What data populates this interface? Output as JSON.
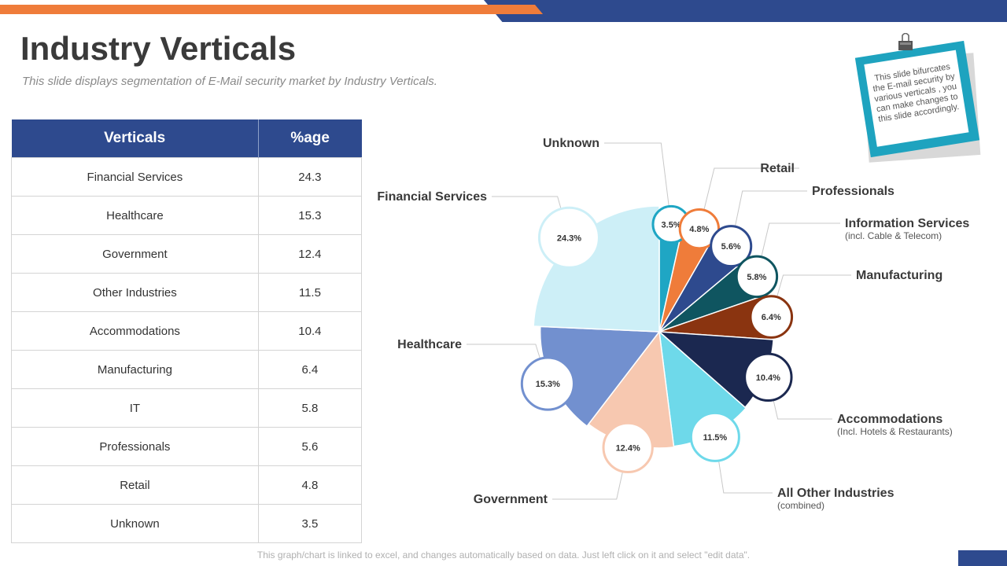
{
  "header": {
    "title": "Industry Verticals",
    "subtitle": "This slide displays segmentation of E-Mail security market by Industry Verticals."
  },
  "table": {
    "columns": [
      "Verticals",
      "%age"
    ],
    "rows": [
      [
        "Financial Services",
        "24.3"
      ],
      [
        "Healthcare",
        "15.3"
      ],
      [
        "Government",
        "12.4"
      ],
      [
        "Other Industries",
        "11.5"
      ],
      [
        "Accommodations",
        "10.4"
      ],
      [
        "Manufacturing",
        "6.4"
      ],
      [
        "IT",
        "5.8"
      ],
      [
        "Professionals",
        "5.6"
      ],
      [
        "Retail",
        "4.8"
      ],
      [
        "Unknown",
        "3.5"
      ]
    ]
  },
  "note": {
    "text": "This slide bifurcates the E-mail security by various verticals , you can make changes to this slide accordingly."
  },
  "footer": {
    "text": "This graph/chart is linked to excel, and changes automatically based on data. Just left click on it and select \"edit data\"."
  },
  "chart_data": {
    "type": "pie",
    "value_suffix": "%",
    "slices": [
      {
        "label": "Unknown",
        "sublabel": "",
        "value": 3.5,
        "color": "#1fa6c4"
      },
      {
        "label": "Retail",
        "sublabel": "",
        "value": 4.8,
        "color": "#ef7c3a"
      },
      {
        "label": "Professionals",
        "sublabel": "",
        "value": 5.6,
        "color": "#2e4a8e"
      },
      {
        "label": "Information Services",
        "sublabel": "(incl. Cable & Telecom)",
        "value": 5.8,
        "color": "#0f5560"
      },
      {
        "label": "Manufacturing",
        "sublabel": "",
        "value": 6.4,
        "color": "#8a3410"
      },
      {
        "label": "Accommodations",
        "sublabel": "(Incl. Hotels & Restaurants)",
        "value": 10.4,
        "color": "#1b2850"
      },
      {
        "label": "All Other Industries",
        "sublabel": "(combined)",
        "value": 11.5,
        "color": "#6ed9ea"
      },
      {
        "label": "Government",
        "sublabel": "",
        "value": 12.4,
        "color": "#f7c8b0"
      },
      {
        "label": "Healthcare",
        "sublabel": "",
        "value": 15.3,
        "color": "#7290cf"
      },
      {
        "label": "Financial Services",
        "sublabel": "",
        "value": 24.3,
        "color": "#cdeff7"
      }
    ]
  }
}
